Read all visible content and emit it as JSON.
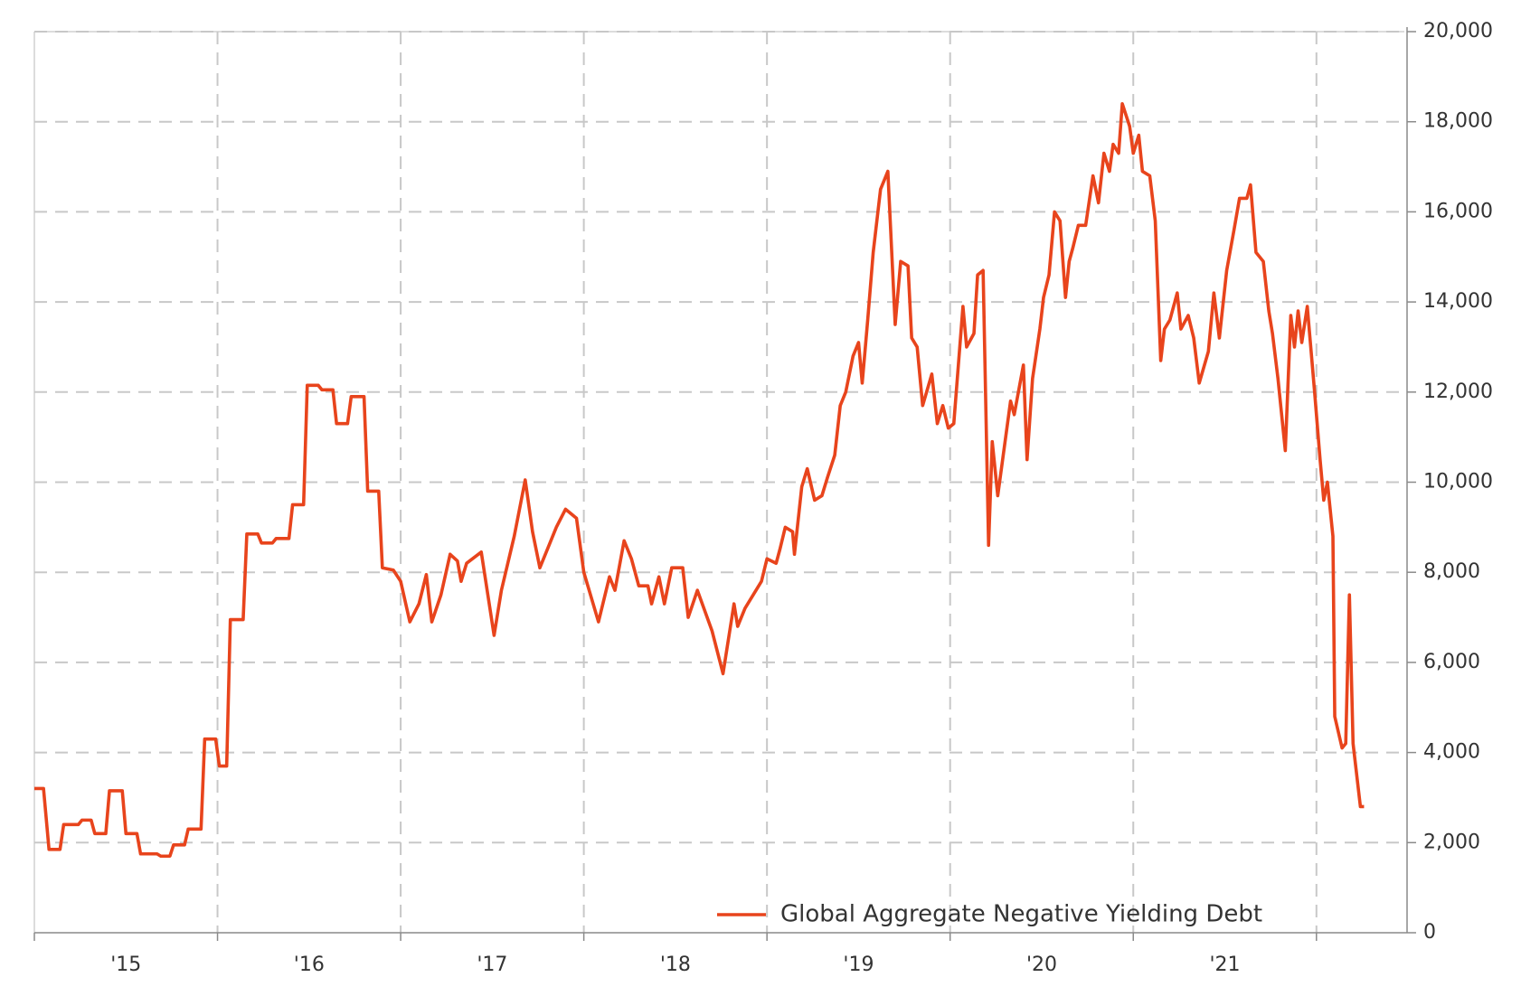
{
  "chart_data": {
    "type": "line",
    "xlim": [
      2015,
      2022.48
    ],
    "xticks": [
      {
        "value": 2015.5,
        "label": "'15"
      },
      {
        "value": 2016.5,
        "label": "'16"
      },
      {
        "value": 2017.5,
        "label": "'17"
      },
      {
        "value": 2018.5,
        "label": "'18"
      },
      {
        "value": 2019.5,
        "label": "'19"
      },
      {
        "value": 2020.5,
        "label": "'20"
      },
      {
        "value": 2021.5,
        "label": "'21"
      }
    ],
    "x_gridlines": [
      2016,
      2017,
      2018,
      2019,
      2020,
      2021,
      2022
    ],
    "ylim": [
      0,
      20000
    ],
    "yticks": [
      0,
      {
        "value": 2000,
        "label": "2,000"
      },
      {
        "value": 4000,
        "label": "4,000"
      },
      {
        "value": 6000,
        "label": "6,000"
      },
      {
        "value": 8000,
        "label": "8,000"
      },
      {
        "value": 10000,
        "label": "10,000"
      },
      {
        "value": 12000,
        "label": "12,000"
      },
      {
        "value": 14000,
        "label": "14,000"
      },
      {
        "value": 16000,
        "label": "16,000"
      },
      {
        "value": 18000,
        "label": "18,000"
      },
      {
        "value": 20000,
        "label": "20,000"
      }
    ],
    "y_axis_side": "right",
    "grid": true,
    "legend": "lower right",
    "x": [
      2015.0,
      2015.05,
      2015.08,
      2015.14,
      2015.16,
      2015.24,
      2015.26,
      2015.31,
      2015.33,
      2015.39,
      2015.41,
      2015.48,
      2015.5,
      2015.56,
      2015.58,
      2015.67,
      2015.69,
      2015.74,
      2015.76,
      2015.82,
      2015.84,
      2015.91,
      2015.93,
      2015.99,
      2016.01,
      2016.05,
      2016.07,
      2016.14,
      2016.16,
      2016.22,
      2016.24,
      2016.3,
      2016.32,
      2016.39,
      2016.41,
      2016.47,
      2016.49,
      2016.55,
      2016.57,
      2016.63,
      2016.65,
      2016.71,
      2016.73,
      2016.8,
      2016.82,
      2016.88,
      2016.9,
      2016.96,
      2017.0,
      2017.05,
      2017.1,
      2017.14,
      2017.17,
      2017.22,
      2017.27,
      2017.31,
      2017.33,
      2017.36,
      2017.44,
      2017.51,
      2017.55,
      2017.62,
      2017.68,
      2017.72,
      2017.76,
      2017.8,
      2017.85,
      2017.9,
      2017.96,
      2018.0,
      2018.08,
      2018.14,
      2018.17,
      2018.22,
      2018.26,
      2018.3,
      2018.35,
      2018.37,
      2018.41,
      2018.44,
      2018.48,
      2018.54,
      2018.57,
      2018.62,
      2018.7,
      2018.76,
      2018.82,
      2018.84,
      2018.88,
      2018.97,
      2019.0,
      2019.05,
      2019.07,
      2019.1,
      2019.14,
      2019.15,
      2019.19,
      2019.22,
      2019.26,
      2019.3,
      2019.33,
      2019.37,
      2019.4,
      2019.43,
      2019.47,
      2019.5,
      2019.52,
      2019.55,
      2019.58,
      2019.62,
      2019.66,
      2019.7,
      2019.73,
      2019.77,
      2019.79,
      2019.82,
      2019.85,
      2019.9,
      2019.93,
      2019.96,
      2019.99,
      2020.02,
      2020.07,
      2020.09,
      2020.13,
      2020.15,
      2020.18,
      2020.21,
      2020.23,
      2020.26,
      2020.3,
      2020.33,
      2020.35,
      2020.4,
      2020.42,
      2020.45,
      2020.49,
      2020.51,
      2020.54,
      2020.57,
      2020.6,
      2020.63,
      2020.65,
      2020.67,
      2020.7,
      2020.74,
      2020.78,
      2020.81,
      2020.84,
      2020.87,
      2020.89,
      2020.92,
      2020.94,
      2020.98,
      2021.0,
      2021.03,
      2021.05,
      2021.09,
      2021.12,
      2021.15,
      2021.17,
      2021.2,
      2021.24,
      2021.26,
      2021.3,
      2021.33,
      2021.36,
      2021.41,
      2021.44,
      2021.47,
      2021.51,
      2021.55,
      2021.58,
      2021.62,
      2021.64,
      2021.67,
      2021.71,
      2021.74,
      2021.76,
      2021.79,
      2021.83,
      2021.86,
      2021.88,
      2021.9,
      2021.92,
      2021.95,
      2021.99,
      2022.02,
      2022.04,
      2022.06,
      2022.09,
      2022.1,
      2022.14,
      2022.16,
      2022.18,
      2022.2,
      2022.24,
      2022.26
    ],
    "series": [
      {
        "name": "Global Aggregate Negative Yielding Debt",
        "color": "#e8441c",
        "values": [
          3200,
          3200,
          1850,
          1850,
          2400,
          2400,
          2500,
          2500,
          2200,
          2200,
          3150,
          3150,
          2200,
          2200,
          1750,
          1750,
          1700,
          1700,
          1950,
          1950,
          2300,
          2300,
          4300,
          4300,
          3700,
          3700,
          6950,
          6950,
          8850,
          8850,
          8650,
          8650,
          8750,
          8750,
          9500,
          9500,
          12150,
          12150,
          12050,
          12050,
          11300,
          11300,
          11900,
          11900,
          9800,
          9800,
          8100,
          8050,
          7800,
          6900,
          7300,
          7950,
          6900,
          7500,
          8400,
          8250,
          7800,
          8200,
          8450,
          6600,
          7600,
          8800,
          10050,
          8900,
          8100,
          8500,
          9000,
          9400,
          9200,
          8000,
          6900,
          7900,
          7600,
          8700,
          8300,
          7700,
          7700,
          7300,
          7900,
          7300,
          8100,
          8100,
          7000,
          7600,
          6700,
          5750,
          7300,
          6800,
          7200,
          7800,
          8300,
          8200,
          8500,
          9000,
          8900,
          8400,
          9900,
          10300,
          9600,
          9700,
          10100,
          10600,
          11700,
          12000,
          12800,
          13100,
          12200,
          13600,
          15100,
          16500,
          16900,
          13500,
          14900,
          14800,
          13200,
          13000,
          11700,
          12400,
          11300,
          11700,
          11200,
          11300,
          13900,
          13000,
          13300,
          14600,
          14700,
          8600,
          10900,
          9700,
          10900,
          11800,
          11500,
          12600,
          10500,
          12300,
          13400,
          14100,
          14600,
          16000,
          15800,
          14100,
          14900,
          15200,
          15700,
          15700,
          16800,
          16200,
          17300,
          16900,
          17500,
          17300,
          18400,
          17900,
          17300,
          17700,
          16900,
          16800,
          15800,
          12700,
          13400,
          13600,
          14200,
          13400,
          13700,
          13200,
          12200,
          12900,
          14200,
          13200,
          14700,
          15600,
          16300,
          16300,
          16600,
          15100,
          14900,
          13800,
          13300,
          12300,
          10700,
          13700,
          13000,
          13800,
          13100,
          13900,
          12000,
          10500,
          9600,
          10000,
          8800,
          4800,
          4100,
          4200,
          7500,
          4200,
          2800,
          2800
        ]
      }
    ]
  }
}
